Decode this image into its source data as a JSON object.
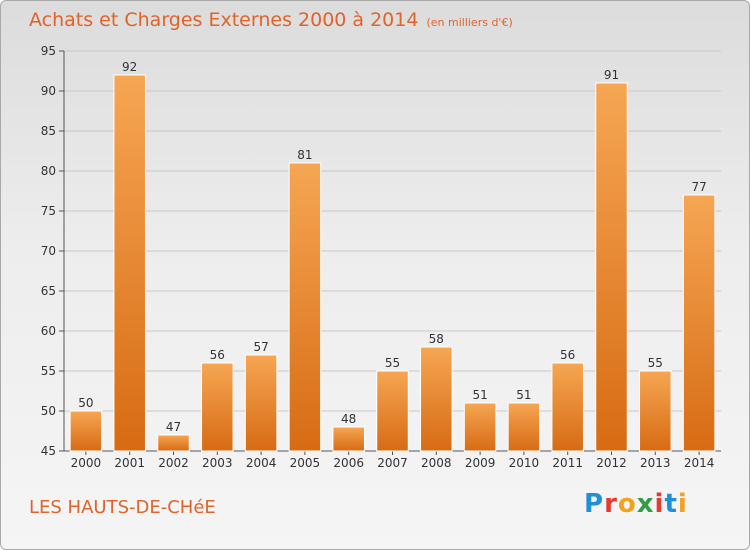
{
  "header": {
    "title": "Achats et Charges Externes 2000 à 2014",
    "unit": "(en milliers d'€)"
  },
  "footer": {
    "commune": "LES HAUTS-DE-CHéE",
    "logo_letters": [
      "P",
      "r",
      "o",
      "x",
      "i",
      "t",
      "i"
    ],
    "logo_colors": [
      "#1f8fd6",
      "#e63a2e",
      "#f2a21b",
      "#2f9e44",
      "#e63a2e",
      "#1f8fd6",
      "#f2a21b"
    ]
  },
  "colors": {
    "title": "#e0632a",
    "bar_top": "#f6a653",
    "bar_bottom": "#d76b14",
    "bar_edge": "#ffffff",
    "grid": "#c8c8c8",
    "text": "#333333"
  },
  "chart_data": {
    "type": "bar",
    "title": "Achats et Charges Externes 2000 à 2014",
    "ylabel": "",
    "xlabel": "",
    "categories": [
      "2000",
      "2001",
      "2002",
      "2003",
      "2004",
      "2005",
      "2006",
      "2007",
      "2008",
      "2009",
      "2010",
      "2011",
      "2012",
      "2013",
      "2014"
    ],
    "values": [
      50,
      92,
      47,
      56,
      57,
      81,
      48,
      55,
      58,
      51,
      51,
      56,
      91,
      55,
      77
    ],
    "ylim": [
      45,
      95
    ],
    "yticks": [
      45,
      50,
      55,
      60,
      65,
      70,
      75,
      80,
      85,
      90,
      95
    ],
    "grid": "horizontal",
    "legend": "none"
  }
}
